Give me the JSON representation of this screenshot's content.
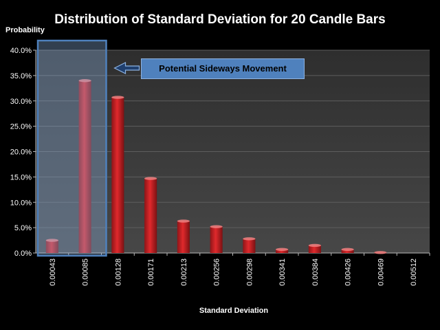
{
  "chart_data": {
    "type": "bar",
    "title": "Distribution of Standard Deviation for 20 Candle Bars",
    "ylabel": "Probability",
    "xlabel": "Standard Deviation",
    "categories": [
      "0.00043",
      "0.00085",
      "0.00128",
      "0.00171",
      "0.00213",
      "0.00256",
      "0.00298",
      "0.00341",
      "0.00384",
      "0.00426",
      "0.00469",
      "0.00512"
    ],
    "values": [
      2.5,
      34.0,
      30.7,
      14.7,
      6.3,
      5.2,
      2.8,
      0.7,
      1.5,
      0.7,
      0.1,
      0.0
    ],
    "ylim": [
      0,
      40
    ],
    "yticks": [
      "0.0%",
      "5.0%",
      "10.0%",
      "15.0%",
      "20.0%",
      "25.0%",
      "30.0%",
      "35.0%",
      "40.0%"
    ],
    "grid": true,
    "annotation": "Potential Sideways Movement",
    "highlight_categories": [
      "0.00043",
      "0.00085"
    ],
    "colors": {
      "bar": "#e0292c",
      "plot_bg": "#3a3a3a",
      "grid": "#5e5e5e",
      "highlight": "#8fb4e3",
      "callout": "#4f81bd"
    }
  }
}
